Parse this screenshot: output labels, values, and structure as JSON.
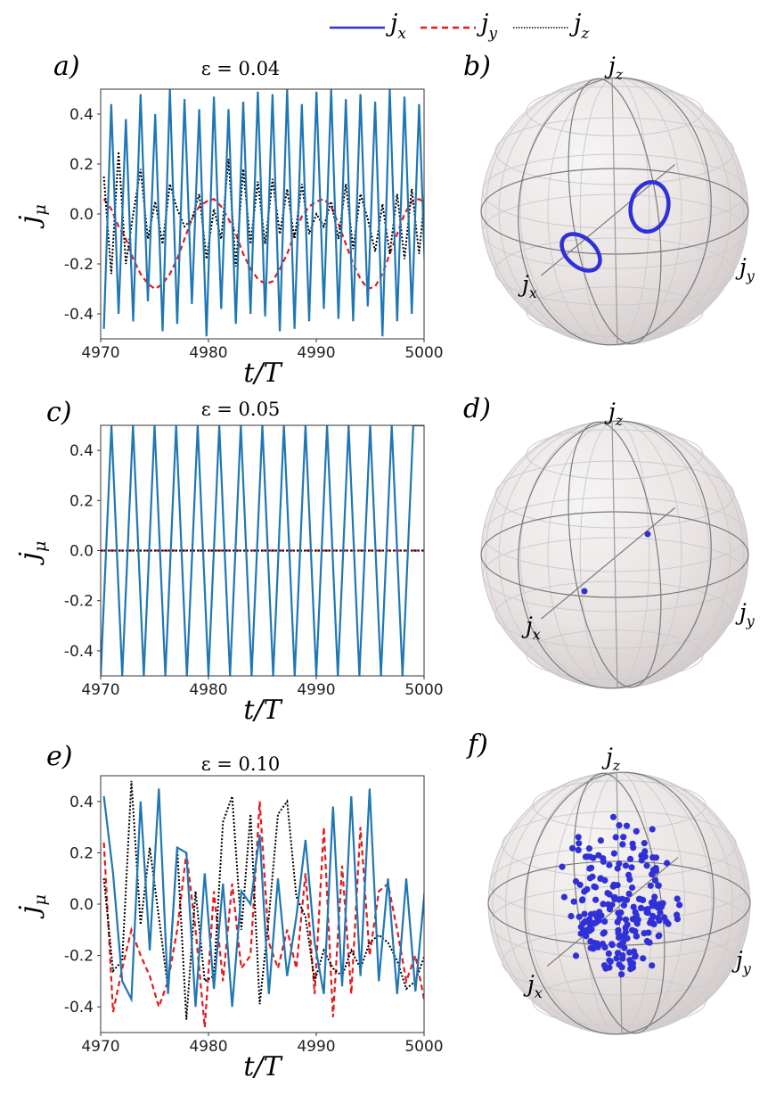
{
  "legend": [
    {
      "symbol": "j",
      "sub": "x",
      "color": "#2a35c9",
      "style": "solid"
    },
    {
      "symbol": "j",
      "sub": "y",
      "color": "#e41a1c",
      "style": "dashed"
    },
    {
      "symbol": "j",
      "sub": "z",
      "color": "#000000",
      "style": "dotted"
    }
  ],
  "colors": {
    "jx": "#1f77b4",
    "jy": "#e41a1c",
    "jz": "#000000",
    "points": "#3030d8"
  },
  "chart_data": [
    {
      "type": "line",
      "panel_label": "a)",
      "title": "ε = 0.04",
      "xlabel": "t/T",
      "ylabel": "j",
      "ylabel_sub": "μ",
      "xlim": [
        4970,
        5000
      ],
      "ylim": [
        -0.5,
        0.5
      ],
      "xticks": [
        "4970",
        "4980",
        "4990",
        "5000"
      ],
      "yticks": [
        "0.4",
        "0.2",
        "0.0",
        "-0.2",
        "-0.4"
      ],
      "x_start": 4970.3,
      "x_step": 0.68,
      "series": [
        {
          "name": "j_x",
          "values": [
            -0.46,
            0.44,
            -0.4,
            0.38,
            -0.43,
            0.48,
            -0.35,
            0.4,
            -0.47,
            0.5,
            -0.44,
            0.46,
            -0.36,
            0.42,
            -0.49,
            0.47,
            -0.38,
            0.42,
            -0.44,
            0.45,
            -0.4,
            0.49,
            -0.41,
            0.48,
            -0.47,
            0.5,
            -0.46,
            0.44,
            -0.43,
            0.49,
            -0.38,
            0.5,
            -0.42,
            0.46,
            -0.43,
            0.48,
            -0.37,
            0.45,
            -0.49,
            0.5,
            -0.43,
            0.47,
            -0.4,
            0.44,
            -0.4
          ]
        },
        {
          "name": "j_y",
          "values": [
            0.06,
            0.02,
            -0.05,
            -0.1,
            -0.18,
            -0.24,
            -0.28,
            -0.3,
            -0.28,
            -0.24,
            -0.18,
            -0.1,
            -0.02,
            0.03,
            0.05,
            0.06,
            0.03,
            -0.02,
            -0.08,
            -0.16,
            -0.22,
            -0.26,
            -0.28,
            -0.27,
            -0.22,
            -0.16,
            -0.08,
            -0.01,
            0.03,
            0.05,
            0.06,
            0.03,
            -0.04,
            -0.12,
            -0.2,
            -0.26,
            -0.3,
            -0.29,
            -0.24,
            -0.16,
            -0.08,
            0.0,
            0.05,
            0.06,
            0.04
          ]
        },
        {
          "name": "j_z",
          "values": [
            0.15,
            -0.24,
            0.25,
            -0.2,
            0.0,
            0.18,
            -0.1,
            0.05,
            -0.12,
            0.12,
            0.02,
            -0.05,
            -0.02,
            0.08,
            -0.18,
            0.02,
            -0.1,
            0.22,
            -0.21,
            0.18,
            -0.12,
            0.13,
            -0.12,
            0.14,
            -0.08,
            0.1,
            -0.1,
            0.12,
            -0.08,
            0.0,
            -0.05,
            0.05,
            -0.1,
            0.12,
            -0.14,
            0.08,
            -0.02,
            -0.15,
            0.04,
            -0.16,
            0.08,
            -0.18,
            0.1,
            -0.16,
            0.15
          ]
        }
      ]
    },
    {
      "type": "line",
      "panel_label": "c)",
      "title": "ε = 0.05",
      "xlabel": "t/T",
      "ylabel": "j",
      "ylabel_sub": "μ",
      "xlim": [
        4970,
        5000
      ],
      "ylim": [
        -0.5,
        0.5
      ],
      "xticks": [
        "4970",
        "4980",
        "4990",
        "5000"
      ],
      "yticks": [
        "0.4",
        "0.2",
        "0.0",
        "-0.2",
        "-0.4"
      ],
      "x_start": 4970.0,
      "x_step": 1.0,
      "series": [
        {
          "name": "j_x",
          "values": [
            -0.5,
            0.5,
            -0.5,
            0.5,
            -0.5,
            0.5,
            -0.5,
            0.5,
            -0.5,
            0.5,
            -0.5,
            0.5,
            -0.5,
            0.5,
            -0.5,
            0.5,
            -0.5,
            0.5,
            -0.5,
            0.5,
            -0.5,
            0.5,
            -0.5,
            0.5,
            -0.5,
            0.5,
            -0.5,
            0.5,
            -0.5,
            0.5,
            0.5
          ]
        },
        {
          "name": "j_y",
          "values": [
            0,
            0,
            0,
            0,
            0,
            0,
            0,
            0,
            0,
            0,
            0,
            0,
            0,
            0,
            0,
            0,
            0,
            0,
            0,
            0,
            0,
            0,
            0,
            0,
            0,
            0,
            0,
            0,
            0,
            0,
            0
          ]
        },
        {
          "name": "j_z",
          "values": [
            0,
            0,
            0,
            0,
            0,
            0,
            0,
            0,
            0,
            0,
            0,
            0,
            0,
            0,
            0,
            0,
            0,
            0,
            0,
            0,
            0,
            0,
            0,
            0,
            0,
            0,
            0,
            0,
            0,
            0,
            0
          ]
        }
      ]
    },
    {
      "type": "line",
      "panel_label": "e)",
      "title": "ε = 0.10",
      "xlabel": "t/T",
      "ylabel": "j",
      "ylabel_sub": "μ",
      "xlim": [
        4970,
        5000
      ],
      "ylim": [
        -0.5,
        0.5
      ],
      "xticks": [
        "4970",
        "4980",
        "4990",
        "5000"
      ],
      "yticks": [
        "0.4",
        "0.2",
        "0.0",
        "-0.2",
        "-0.4"
      ],
      "x_start": 4970.3,
      "x_step": 0.85,
      "series": [
        {
          "name": "j_x",
          "values": [
            0.42,
            0.12,
            -0.3,
            -0.37,
            0.4,
            -0.18,
            0.45,
            -0.35,
            0.22,
            0.2,
            -0.4,
            0.12,
            -0.33,
            0.08,
            -0.4,
            0.05,
            0.0,
            0.27,
            -0.35,
            0.1,
            -0.28,
            -0.05,
            0.25,
            -0.15,
            -0.35,
            0.38,
            -0.32,
            0.42,
            -0.28,
            0.45,
            -0.3,
            0.1,
            -0.35,
            0.1,
            -0.34,
            0.05
          ]
        },
        {
          "name": "j_y",
          "values": [
            0.24,
            -0.42,
            -0.25,
            -0.1,
            -0.2,
            -0.28,
            -0.4,
            -0.3,
            -0.1,
            0.2,
            -0.1,
            -0.48,
            0.05,
            -0.3,
            0.08,
            -0.25,
            -0.2,
            0.4,
            -0.15,
            -0.25,
            -0.1,
            -0.25,
            0.12,
            -0.35,
            0.3,
            -0.44,
            0.15,
            -0.35,
            0.3,
            -0.2,
            0.05,
            0.08,
            -0.1,
            -0.3,
            -0.2,
            -0.38
          ]
        },
        {
          "name": "j_z",
          "values": [
            0.1,
            -0.26,
            -0.22,
            0.48,
            -0.08,
            0.22,
            -0.05,
            -0.33,
            0.22,
            -0.45,
            0.05,
            -0.3,
            -0.28,
            0.32,
            0.42,
            -0.1,
            0.35,
            -0.39,
            -0.05,
            0.35,
            0.4,
            0.03,
            -0.05,
            -0.3,
            -0.18,
            -0.25,
            -0.28,
            -0.18,
            -0.25,
            -0.15,
            -0.12,
            -0.15,
            -0.22,
            -0.33,
            -0.3,
            -0.2
          ]
        }
      ]
    }
  ],
  "spheres": [
    {
      "panel_label": "b)",
      "axis_labels": {
        "x": {
          "symbol": "j",
          "sub": "x"
        },
        "y": {
          "symbol": "j",
          "sub": "y"
        },
        "z": {
          "symbol": "j",
          "sub": "z"
        }
      },
      "content": "two closed orbits (rings)"
    },
    {
      "panel_label": "d)",
      "axis_labels": {
        "x": {
          "symbol": "j",
          "sub": "x"
        },
        "y": {
          "symbol": "j",
          "sub": "y"
        },
        "z": {
          "symbol": "j",
          "sub": "z"
        }
      },
      "content": "two fixed points"
    },
    {
      "panel_label": "f)",
      "axis_labels": {
        "x": {
          "symbol": "j",
          "sub": "x"
        },
        "y": {
          "symbol": "j",
          "sub": "y"
        },
        "z": {
          "symbol": "j",
          "sub": "z"
        }
      },
      "content": "scattered points"
    }
  ]
}
